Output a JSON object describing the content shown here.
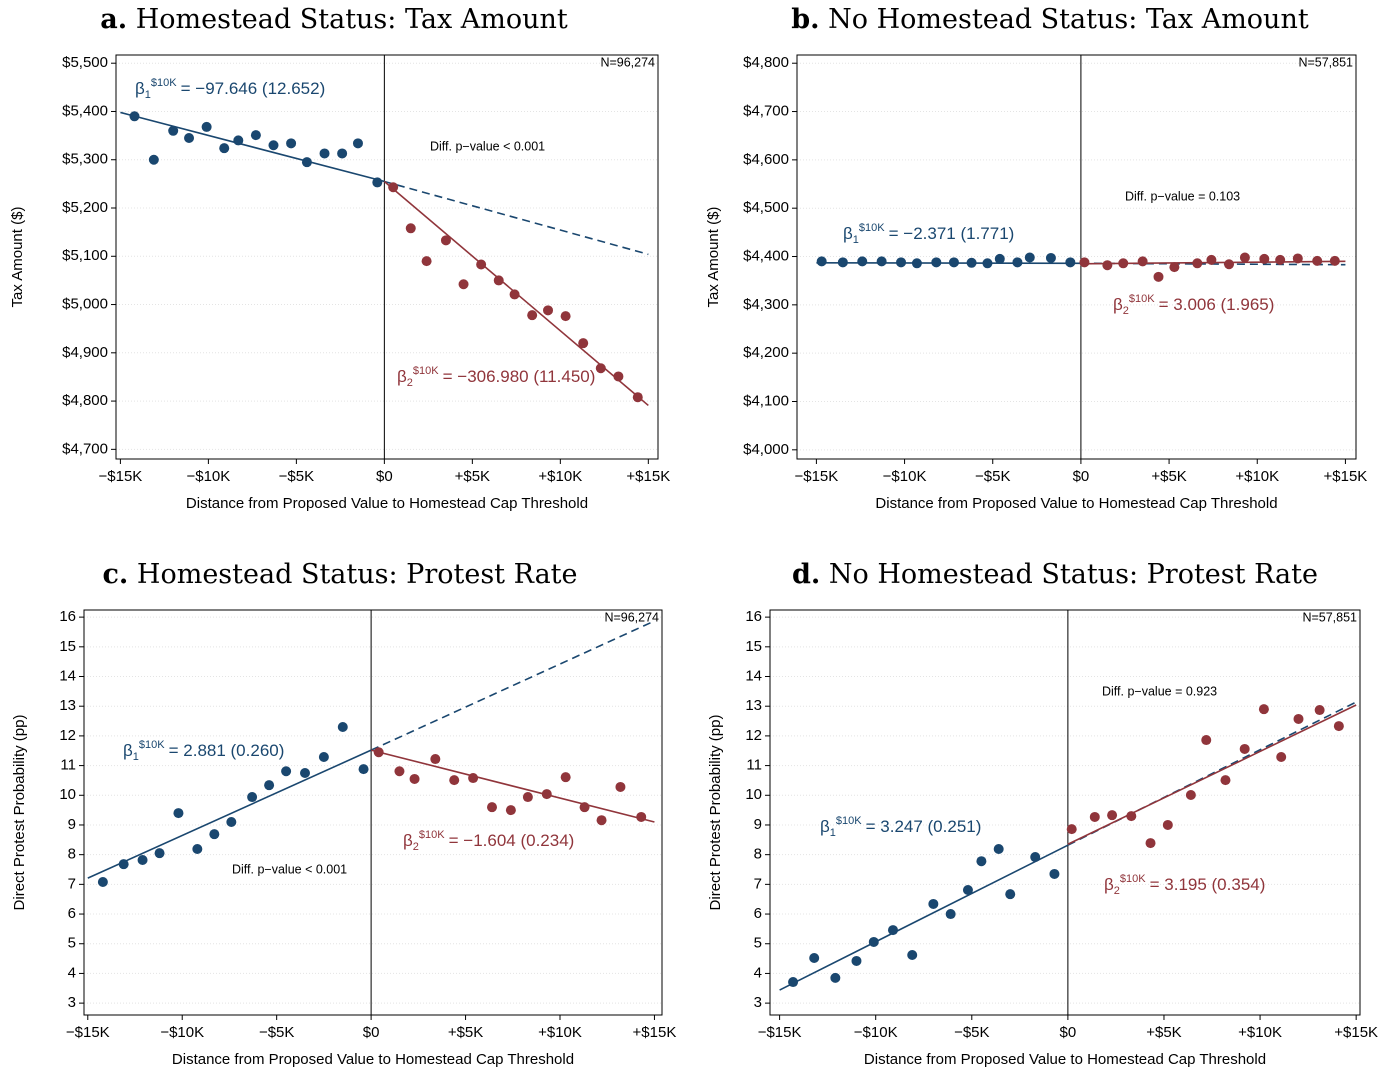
{
  "chart_data": [
    {
      "type": "scatter",
      "panel": "a.",
      "title": "Homestead Status: Tax Amount",
      "xlabel": "Distance from Proposed Value to Homestead Cap Threshold",
      "ylabel": "Tax Amount ($)",
      "n_label": "N=96,274",
      "annotation": "Diff. p−value < 0.001",
      "xlim": [
        -15250,
        15550
      ],
      "ylim": [
        4680,
        5517
      ],
      "xticks": [
        {
          "value": -15000,
          "label": "−$15K"
        },
        {
          "value": -10000,
          "label": "−$10K"
        },
        {
          "value": -5000,
          "label": "−$5K"
        },
        {
          "value": 0,
          "label": "$0"
        },
        {
          "value": 5000,
          "label": "+$5K"
        },
        {
          "value": 10000,
          "label": "+$10K"
        },
        {
          "value": 15000,
          "label": "+$15K"
        }
      ],
      "yticks": [
        {
          "value": 4700,
          "label": "$4,700"
        },
        {
          "value": 4800,
          "label": "$4,800"
        },
        {
          "value": 4900,
          "label": "$4,900"
        },
        {
          "value": 5000,
          "label": "$5,000"
        },
        {
          "value": 5100,
          "label": "$5,100"
        },
        {
          "value": 5200,
          "label": "$5,200"
        },
        {
          "value": 5300,
          "label": "$5,300"
        },
        {
          "value": 5400,
          "label": "$5,400"
        },
        {
          "value": 5500,
          "label": "$5,500"
        }
      ],
      "grid": true,
      "vline": 0,
      "series": [
        {
          "color": "#1a476f",
          "beta": {
            "symbol": "β",
            "sub": "1",
            "sup": "$10K",
            "text": "= −97.646 (12.652)"
          },
          "x": [
            -14200,
            -13100,
            -12000,
            -11100,
            -10100,
            -9100,
            -8300,
            -7300,
            -6300,
            -5300,
            -4400,
            -3400,
            -2400,
            -1500,
            -400
          ],
          "values": [
            5390,
            5300,
            5360,
            5345,
            5368,
            5324,
            5340,
            5351,
            5330,
            5334,
            5295,
            5313,
            5313,
            5334,
            5253
          ]
        },
        {
          "color": "#90353b",
          "beta": {
            "symbol": "β",
            "sub": "2",
            "sup": "$10K",
            "text": "= −306.980 (11.450)"
          },
          "x": [
            500,
            1500,
            2400,
            3500,
            4500,
            5500,
            6500,
            7400,
            8400,
            9300,
            10300,
            11300,
            12300,
            13300,
            14400
          ],
          "values": [
            5243,
            5158,
            5090,
            5133,
            5042,
            5083,
            5050,
            5021,
            4978,
            4988,
            4976,
            4920,
            4868,
            4851,
            4808
          ]
        }
      ],
      "lines": [
        {
          "color": "#1a476f",
          "style": "solid",
          "x": [
            -15000,
            0
          ],
          "y": [
            5398,
            5255
          ]
        },
        {
          "color": "#1a476f",
          "style": "dashed",
          "x": [
            0,
            15000
          ],
          "y": [
            5255,
            5104
          ]
        },
        {
          "color": "#90353b",
          "style": "solid",
          "x": [
            0,
            15000
          ],
          "y": [
            5255,
            4791
          ]
        }
      ]
    },
    {
      "type": "scatter",
      "panel": "b.",
      "title": "No Homestead Status: Tax Amount",
      "xlabel": "Distance from Proposed Value to Homestead Cap Threshold",
      "ylabel": "Tax Amount ($)",
      "n_label": "N=57,851",
      "annotation": "Diff. p−value = 0.103",
      "xlim": [
        -16100,
        15600
      ],
      "ylim": [
        3981,
        4817
      ],
      "xticks": [
        {
          "value": -15000,
          "label": "−$15K"
        },
        {
          "value": -10000,
          "label": "−$10K"
        },
        {
          "value": -5000,
          "label": "−$5K"
        },
        {
          "value": 0,
          "label": "$0"
        },
        {
          "value": 5000,
          "label": "+$5K"
        },
        {
          "value": 10000,
          "label": "+$10K"
        },
        {
          "value": 15000,
          "label": "+$15K"
        }
      ],
      "yticks": [
        {
          "value": 4000,
          "label": "$4,000"
        },
        {
          "value": 4100,
          "label": "$4,100"
        },
        {
          "value": 4200,
          "label": "$4,200"
        },
        {
          "value": 4300,
          "label": "$4,300"
        },
        {
          "value": 4400,
          "label": "$4,400"
        },
        {
          "value": 4500,
          "label": "$4,500"
        },
        {
          "value": 4600,
          "label": "$4,600"
        },
        {
          "value": 4700,
          "label": "$4,700"
        },
        {
          "value": 4800,
          "label": "$4,800"
        }
      ],
      "grid": true,
      "vline": 0,
      "series": [
        {
          "color": "#1a476f",
          "beta": {
            "symbol": "β",
            "sub": "1",
            "sup": "$10K",
            "text": "= −2.371 (1.771)"
          },
          "x": [
            -14700,
            -13500,
            -12400,
            -11300,
            -10200,
            -9300,
            -8200,
            -7200,
            -6200,
            -5300,
            -4600,
            -3600,
            -2900,
            -1700,
            -600
          ],
          "values": [
            4390,
            4388,
            4390,
            4390,
            4388,
            4386,
            4388,
            4388,
            4387,
            4386,
            4395,
            4388,
            4398,
            4397,
            4388
          ]
        },
        {
          "color": "#90353b",
          "beta": {
            "symbol": "β",
            "sub": "2",
            "sup": "$10K",
            "text": "= 3.006 (1.965)"
          },
          "x": [
            200,
            1500,
            2400,
            3500,
            4400,
            5300,
            6600,
            7400,
            8400,
            9300,
            10400,
            11300,
            12300,
            13400,
            14400
          ],
          "values": [
            4388,
            4382,
            4386,
            4390,
            4358,
            4378,
            4386,
            4393,
            4384,
            4398,
            4395,
            4393,
            4396,
            4391,
            4391
          ]
        }
      ],
      "lines": [
        {
          "color": "#1a476f",
          "style": "solid",
          "x": [
            -15000,
            0
          ],
          "y": [
            4387,
            4386
          ]
        },
        {
          "color": "#1a476f",
          "style": "dashed",
          "x": [
            0,
            15000
          ],
          "y": [
            4386,
            4383
          ]
        },
        {
          "color": "#90353b",
          "style": "solid",
          "x": [
            0,
            15000
          ],
          "y": [
            4385,
            4390
          ]
        }
      ]
    },
    {
      "type": "scatter",
      "panel": "c.",
      "title": "Homestead Status: Protest Rate",
      "xlabel": "Distance from Proposed Value to Homestead Cap Threshold",
      "ylabel": "Direct Protest Probability (pp)",
      "n_label": "N=96,274",
      "annotation": "Diff. p−value < 0.001",
      "xlim": [
        -15200,
        15400
      ],
      "ylim": [
        2.6,
        16.24
      ],
      "xticks": [
        {
          "value": -15000,
          "label": "−$15K"
        },
        {
          "value": -10000,
          "label": "−$10K"
        },
        {
          "value": -5000,
          "label": "−$5K"
        },
        {
          "value": 0,
          "label": "$0"
        },
        {
          "value": 5000,
          "label": "+$5K"
        },
        {
          "value": 10000,
          "label": "+$10K"
        },
        {
          "value": 15000,
          "label": "+$15K"
        }
      ],
      "yticks": [
        3,
        4,
        5,
        6,
        7,
        8,
        9,
        10,
        11,
        12,
        13,
        14,
        15,
        16
      ],
      "grid": true,
      "vline": 0,
      "series": [
        {
          "color": "#1a476f",
          "beta": {
            "symbol": "β",
            "sub": "1",
            "sup": "$10K",
            "text": "= 2.881 (0.260)"
          },
          "x": [
            -14200,
            -13100,
            -12100,
            -11200,
            -10200,
            -9200,
            -8300,
            -7400,
            -6300,
            -5400,
            -4500,
            -3500,
            -2500,
            -1500,
            -400
          ],
          "values": [
            7.08,
            7.68,
            7.82,
            8.05,
            9.4,
            8.19,
            8.69,
            9.1,
            9.94,
            10.34,
            10.81,
            10.75,
            11.29,
            12.3,
            10.88
          ]
        },
        {
          "color": "#90353b",
          "beta": {
            "symbol": "β",
            "sub": "2",
            "sup": "$10K",
            "text": "= −1.604 (0.234)"
          },
          "x": [
            400,
            1500,
            2300,
            3400,
            4400,
            5400,
            6400,
            7400,
            8300,
            9300,
            10300,
            11300,
            12200,
            13200,
            14300
          ],
          "values": [
            11.45,
            10.81,
            10.55,
            11.22,
            10.51,
            10.58,
            9.6,
            9.5,
            9.94,
            10.04,
            10.61,
            9.6,
            9.16,
            10.28,
            9.27
          ]
        }
      ],
      "lines": [
        {
          "color": "#1a476f",
          "style": "solid",
          "x": [
            -15000,
            0
          ],
          "y": [
            7.21,
            11.52
          ]
        },
        {
          "color": "#1a476f",
          "style": "dashed",
          "x": [
            0,
            15000
          ],
          "y": [
            11.52,
            15.87
          ]
        },
        {
          "color": "#90353b",
          "style": "solid",
          "x": [
            0,
            15000
          ],
          "y": [
            11.52,
            9.1
          ]
        }
      ]
    },
    {
      "type": "scatter",
      "panel": "d.",
      "title": "No Homestead Status: Protest Rate",
      "xlabel": "Distance from Proposed Value to Homestead Cap Threshold",
      "ylabel": "Direct Protest Probability (pp)",
      "n_label": "N=57,851",
      "annotation": "Diff. p−value = 0.923",
      "xlim": [
        -15500,
        15200
      ],
      "ylim": [
        2.6,
        16.24
      ],
      "xticks": [
        {
          "value": -15000,
          "label": "−$15K"
        },
        {
          "value": -10000,
          "label": "−$10K"
        },
        {
          "value": -5000,
          "label": "−$5K"
        },
        {
          "value": 0,
          "label": "$0"
        },
        {
          "value": 5000,
          "label": "+$5K"
        },
        {
          "value": 10000,
          "label": "+$10K"
        },
        {
          "value": 15000,
          "label": "+$15K"
        }
      ],
      "yticks": [
        3,
        4,
        5,
        6,
        7,
        8,
        9,
        10,
        11,
        12,
        13,
        14,
        15,
        16
      ],
      "grid": true,
      "vline": 0,
      "series": [
        {
          "color": "#1a476f",
          "beta": {
            "symbol": "β",
            "sub": "1",
            "sup": "$10K",
            "text": "= 3.247 (0.251)"
          },
          "x": [
            -14300,
            -13200,
            -12100,
            -11000,
            -10100,
            -9100,
            -8100,
            -7000,
            -6100,
            -5200,
            -4500,
            -3600,
            -3000,
            -1700,
            -700
          ],
          "values": [
            3.71,
            4.52,
            3.85,
            4.42,
            5.06,
            5.46,
            4.62,
            6.34,
            6.0,
            6.81,
            7.78,
            8.19,
            6.67,
            7.92,
            7.35
          ]
        },
        {
          "color": "#90353b",
          "beta": {
            "symbol": "β",
            "sub": "2",
            "sup": "$10K",
            "text": "= 3.195 (0.354)"
          },
          "x": [
            200,
            1400,
            2300,
            3300,
            4300,
            5200,
            6400,
            7200,
            8200,
            9200,
            10200,
            11100,
            12000,
            13100,
            14100
          ],
          "values": [
            8.86,
            9.27,
            9.33,
            9.3,
            8.39,
            9.0,
            10.01,
            11.86,
            10.51,
            11.56,
            12.9,
            11.29,
            12.57,
            12.87,
            12.33
          ]
        }
      ],
      "lines": [
        {
          "color": "#1a476f",
          "style": "solid",
          "x": [
            -15000,
            0
          ],
          "y": [
            3.44,
            8.32
          ]
        },
        {
          "color": "#1a476f",
          "style": "dashed",
          "x": [
            0,
            15000
          ],
          "y": [
            8.32,
            13.14
          ]
        },
        {
          "color": "#90353b",
          "style": "solid",
          "x": [
            0,
            15000
          ],
          "y": [
            8.35,
            13.04
          ]
        }
      ]
    }
  ]
}
